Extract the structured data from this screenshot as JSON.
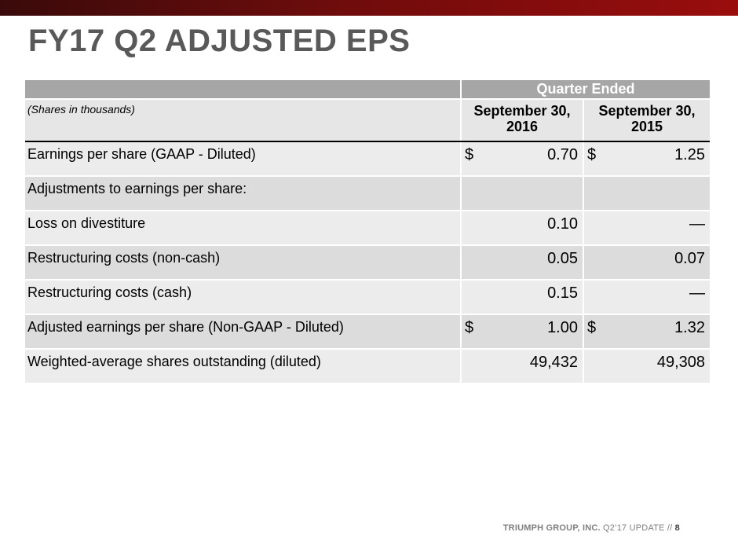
{
  "slide": {
    "title": "FY17 Q2 ADJUSTED EPS"
  },
  "table": {
    "group_header": "Quarter Ended",
    "units_note": "(Shares in thousands)",
    "columns": [
      "September 30, 2016",
      "September 30, 2015"
    ],
    "rows": [
      {
        "label": "Earnings per share (GAAP - Diluted)",
        "c1_cur": "$",
        "c1": "0.70",
        "c2_cur": "$",
        "c2": "1.25"
      },
      {
        "label": "Adjustments to earnings per share:",
        "c1_cur": "",
        "c1": "",
        "c2_cur": "",
        "c2": ""
      },
      {
        "label": "Loss on divestiture",
        "c1_cur": "",
        "c1": "0.10",
        "c2_cur": "",
        "c2": "—"
      },
      {
        "label": "Restructuring costs (non-cash)",
        "c1_cur": "",
        "c1": "0.05",
        "c2_cur": "",
        "c2": "0.07"
      },
      {
        "label": "Restructuring costs (cash)",
        "c1_cur": "",
        "c1": "0.15",
        "c2_cur": "",
        "c2": "—"
      },
      {
        "label": "Adjusted earnings per share (Non-GAAP - Diluted)",
        "c1_cur": "$",
        "c1": "1.00",
        "c2_cur": "$",
        "c2": "1.32"
      },
      {
        "label": "Weighted-average shares outstanding (diluted)",
        "c1_cur": "",
        "c1": "49,432",
        "c2_cur": "",
        "c2": "49,308"
      }
    ]
  },
  "footer": {
    "company": "TRIUMPH GROUP, INC.",
    "update": "Q2’17 UPDATE //",
    "page": "8"
  },
  "colors": {
    "top_bar": "#9a0d0d",
    "title": "#595959",
    "header_fill": "#a6a6a6"
  }
}
